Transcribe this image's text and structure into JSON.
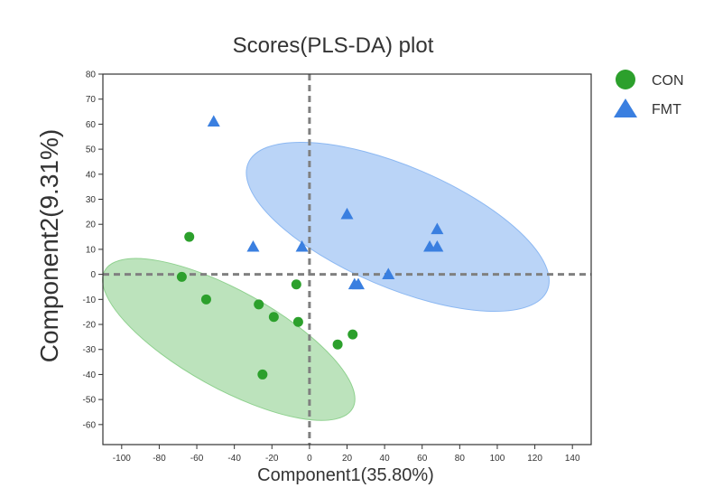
{
  "chart_data": {
    "type": "scatter",
    "title": "Scores(PLS-DA) plot",
    "xlabel": "Component1(35.80%)",
    "ylabel": "Component2(9.31%)",
    "xlim": [
      -110,
      150
    ],
    "ylim": [
      -68,
      80
    ],
    "xticks": [
      -100,
      -80,
      -60,
      -40,
      -20,
      0,
      20,
      40,
      60,
      80,
      100,
      120,
      140
    ],
    "yticks": [
      80,
      70,
      60,
      50,
      40,
      30,
      20,
      10,
      0,
      -10,
      -20,
      -30,
      -40,
      -50,
      -60
    ],
    "legend_position": "top-right",
    "series": [
      {
        "name": "CON",
        "marker": "circle",
        "color": "#2ca02c",
        "ellipse_color": "#8fd18f",
        "x": [
          -64,
          -68,
          -55,
          -27,
          -19,
          -7,
          -6,
          23,
          15,
          -25
        ],
        "y": [
          15,
          -1,
          -10,
          -12,
          -17,
          -4,
          -19,
          -24,
          -28,
          -40
        ],
        "ellipse": {
          "center": [
            -43,
            -26
          ],
          "rx": 157,
          "ry": 54,
          "angle": 29
        }
      },
      {
        "name": "FMT",
        "marker": "triangle",
        "color": "#3a7fe0",
        "ellipse_color": "#8cb8f2",
        "x": [
          -51,
          -30,
          -4,
          20,
          24,
          26,
          42,
          64,
          68,
          68
        ],
        "y": [
          61,
          11,
          11,
          24,
          -4,
          -4,
          0,
          11,
          11,
          18
        ],
        "ellipse": {
          "center": [
            47,
            19
          ],
          "rx": 180,
          "ry": 67,
          "angle": 23
        }
      }
    ],
    "reference_lines": {
      "x": 0,
      "y": 0,
      "style": "dashed",
      "color": "#808080"
    }
  }
}
